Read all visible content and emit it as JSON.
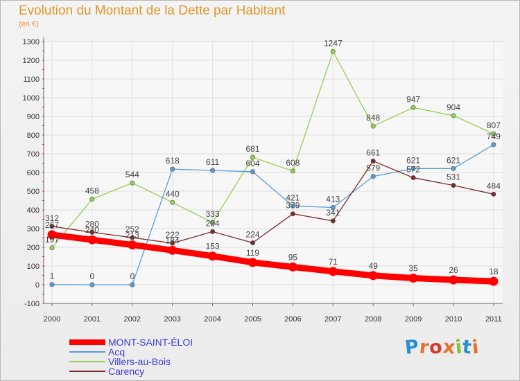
{
  "title": "Evolution du Montant de la Dette par Habitant",
  "unit": "(en €)",
  "brand": {
    "text": "Proxiti",
    "letter_colors": [
      "#2a8fd1",
      "#e8702a",
      "#d93a2e",
      "#e8702a",
      "#7ec13a",
      "#2a8fd1",
      "#e8702a"
    ]
  },
  "chart_data": {
    "type": "line",
    "x": [
      "2000",
      "2001",
      "2002",
      "2003",
      "2004",
      "2005",
      "2006",
      "2007",
      "2008",
      "2009",
      "2010",
      "2011"
    ],
    "ylim": [
      -100,
      1300
    ],
    "yticks": [
      -100,
      0,
      100,
      200,
      300,
      400,
      500,
      600,
      700,
      800,
      900,
      1000,
      1100,
      1200,
      1300
    ],
    "grid": true,
    "legend_position": "bottom-left",
    "series": [
      {
        "name": "MONT-SAINT-ÉLOI",
        "color": "#ff0000",
        "values": [
          267,
          240,
          213,
          184,
          153,
          119,
          95,
          71,
          49,
          35,
          26,
          18
        ]
      },
      {
        "name": "Acq",
        "color": "#5b9bd5",
        "values": [
          1,
          0,
          0,
          618,
          611,
          604,
          421,
          413,
          579,
          621,
          621,
          749
        ]
      },
      {
        "name": "Villers-au-Bois",
        "color": "#92d050",
        "values": [
          197,
          458,
          544,
          440,
          333,
          681,
          608,
          1247,
          848,
          947,
          904,
          807
        ]
      },
      {
        "name": "Carency",
        "color": "#7b2a2a",
        "values": [
          312,
          280,
          252,
          222,
          284,
          224,
          379,
          341,
          661,
          572,
          531,
          484
        ]
      }
    ]
  }
}
